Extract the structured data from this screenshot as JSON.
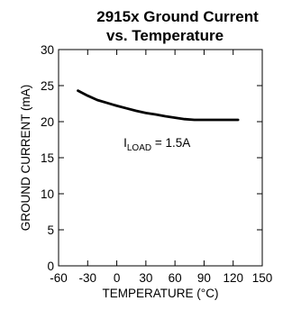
{
  "chart_data": {
    "type": "line",
    "title_lines": [
      "2915x Ground Current",
      "vs. Temperature"
    ],
    "xlabel": "TEMPERATURE (°C)",
    "ylabel": "GROUND CURRENT (mA)",
    "xlim": [
      -60,
      150
    ],
    "ylim": [
      0,
      30
    ],
    "xticks": [
      -60,
      -30,
      0,
      30,
      60,
      90,
      120,
      150
    ],
    "yticks": [
      0,
      5,
      10,
      15,
      20,
      25,
      30
    ],
    "grid": false,
    "line_color": "#000000",
    "annotation": {
      "prefix": "I",
      "subscript": "LOAD",
      "suffix": " = 1.5A",
      "at": {
        "x": 7,
        "y": 16.5
      }
    },
    "series": [
      {
        "x": [
          -40,
          -30,
          -20,
          -10,
          0,
          10,
          20,
          30,
          40,
          50,
          60,
          70,
          80,
          90,
          100,
          110,
          125
        ],
        "y": [
          24.3,
          23.6,
          23.0,
          22.6,
          22.2,
          21.85,
          21.5,
          21.2,
          21.0,
          20.75,
          20.55,
          20.35,
          20.25,
          20.25,
          20.25,
          20.25,
          20.25
        ]
      }
    ]
  }
}
